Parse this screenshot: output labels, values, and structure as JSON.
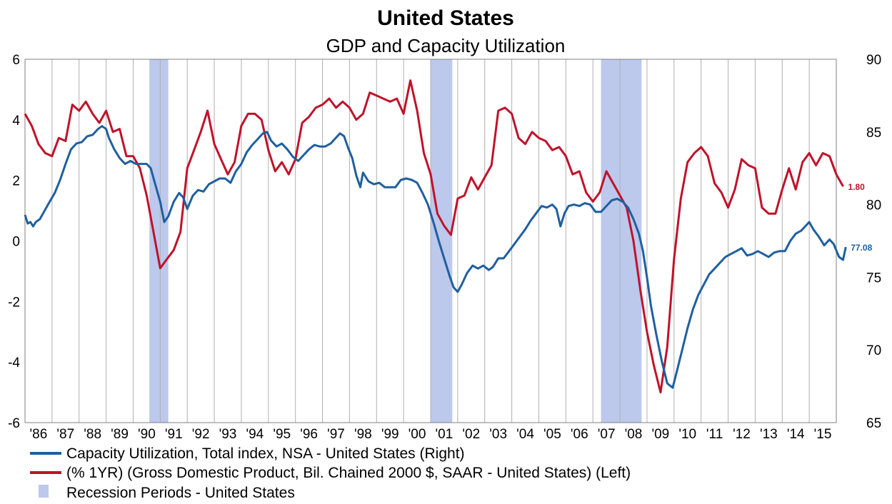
{
  "chart_data": {
    "type": "line",
    "title": "United States",
    "subtitle": "GDP and Capacity Utilization",
    "x_tick_labels": [
      "'86",
      "'87",
      "'88",
      "'89",
      "'90",
      "'91",
      "'92",
      "'93",
      "'94",
      "'95",
      "'96",
      "'97",
      "'98",
      "'99",
      "'00",
      "'01",
      "'02",
      "'03",
      "'04",
      "'05",
      "'06",
      "'07",
      "'08",
      "'09",
      "'10",
      "'11",
      "'12",
      "'13",
      "'14",
      "'15"
    ],
    "x_range": [
      1986,
      2016
    ],
    "y_left": {
      "range": [
        -6,
        6
      ],
      "ticks": [
        "-6",
        "-4",
        "-2",
        "0",
        "2",
        "4",
        "6"
      ]
    },
    "y_right": {
      "range": [
        65,
        90
      ],
      "ticks": [
        "65",
        "70",
        "75",
        "80",
        "85",
        "90"
      ]
    },
    "grid": {
      "vertical": true,
      "horizontal": false
    },
    "legend_position": "bottom-left",
    "recessions": [
      {
        "start": 1990.6,
        "end": 1991.3
      },
      {
        "start": 2001.0,
        "end": 2001.8
      },
      {
        "start": 2007.3,
        "end": 2008.8
      }
    ],
    "series": [
      {
        "name": "Capacity Utilization, Total index, NSA - United States  (Right)",
        "axis": "right",
        "color": "#1f5fa0",
        "end_label": "77.08",
        "points": [
          [
            1986.0,
            79.3
          ],
          [
            1986.1,
            78.7
          ],
          [
            1986.2,
            78.8
          ],
          [
            1986.3,
            78.5
          ],
          [
            1986.4,
            78.8
          ],
          [
            1986.55,
            79.0
          ],
          [
            1986.7,
            79.5
          ],
          [
            1986.85,
            80.0
          ],
          [
            1987.1,
            80.8
          ],
          [
            1987.3,
            81.7
          ],
          [
            1987.5,
            82.8
          ],
          [
            1987.7,
            83.8
          ],
          [
            1987.9,
            84.2
          ],
          [
            1988.1,
            84.3
          ],
          [
            1988.3,
            84.7
          ],
          [
            1988.5,
            84.8
          ],
          [
            1988.7,
            85.2
          ],
          [
            1988.85,
            85.4
          ],
          [
            1989.0,
            85.2
          ],
          [
            1989.1,
            84.6
          ],
          [
            1989.3,
            83.8
          ],
          [
            1989.5,
            83.2
          ],
          [
            1989.7,
            82.8
          ],
          [
            1989.9,
            83.0
          ],
          [
            1990.1,
            82.8
          ],
          [
            1990.3,
            82.8
          ],
          [
            1990.5,
            82.8
          ],
          [
            1990.65,
            82.5
          ],
          [
            1990.8,
            81.5
          ],
          [
            1991.0,
            80.2
          ],
          [
            1991.15,
            78.8
          ],
          [
            1991.3,
            79.2
          ],
          [
            1991.5,
            80.2
          ],
          [
            1991.7,
            80.8
          ],
          [
            1991.85,
            80.5
          ],
          [
            1992.0,
            79.7
          ],
          [
            1992.2,
            80.6
          ],
          [
            1992.4,
            81.0
          ],
          [
            1992.6,
            80.9
          ],
          [
            1992.8,
            81.4
          ],
          [
            1993.0,
            81.6
          ],
          [
            1993.2,
            81.8
          ],
          [
            1993.4,
            81.8
          ],
          [
            1993.6,
            81.5
          ],
          [
            1993.8,
            82.3
          ],
          [
            1994.0,
            82.8
          ],
          [
            1994.2,
            83.6
          ],
          [
            1994.4,
            84.1
          ],
          [
            1994.6,
            84.5
          ],
          [
            1994.8,
            84.9
          ],
          [
            1994.95,
            85.0
          ],
          [
            1995.1,
            84.4
          ],
          [
            1995.3,
            84.0
          ],
          [
            1995.5,
            84.2
          ],
          [
            1995.7,
            83.8
          ],
          [
            1995.9,
            83.3
          ],
          [
            1996.1,
            83.0
          ],
          [
            1996.3,
            83.4
          ],
          [
            1996.5,
            83.8
          ],
          [
            1996.7,
            84.1
          ],
          [
            1996.9,
            84.0
          ],
          [
            1997.1,
            84.0
          ],
          [
            1997.3,
            84.2
          ],
          [
            1997.5,
            84.6
          ],
          [
            1997.65,
            84.9
          ],
          [
            1997.8,
            84.7
          ],
          [
            1997.95,
            83.9
          ],
          [
            1998.1,
            83.2
          ],
          [
            1998.25,
            82.0
          ],
          [
            1998.4,
            81.2
          ],
          [
            1998.5,
            82.2
          ],
          [
            1998.7,
            81.6
          ],
          [
            1998.9,
            81.4
          ],
          [
            1999.1,
            81.5
          ],
          [
            1999.3,
            81.2
          ],
          [
            1999.5,
            81.2
          ],
          [
            1999.7,
            81.2
          ],
          [
            1999.9,
            81.7
          ],
          [
            2000.1,
            81.8
          ],
          [
            2000.3,
            81.7
          ],
          [
            2000.5,
            81.5
          ],
          [
            2000.7,
            80.8
          ],
          [
            2000.9,
            80.0
          ],
          [
            2001.1,
            78.8
          ],
          [
            2001.3,
            77.5
          ],
          [
            2001.5,
            76.3
          ],
          [
            2001.7,
            75.1
          ],
          [
            2001.85,
            74.3
          ],
          [
            2002.0,
            74.0
          ],
          [
            2002.15,
            74.5
          ],
          [
            2002.35,
            75.3
          ],
          [
            2002.55,
            75.8
          ],
          [
            2002.75,
            75.6
          ],
          [
            2002.95,
            75.8
          ],
          [
            2003.15,
            75.5
          ],
          [
            2003.3,
            75.7
          ],
          [
            2003.5,
            76.3
          ],
          [
            2003.7,
            76.3
          ],
          [
            2003.9,
            76.8
          ],
          [
            2004.1,
            77.3
          ],
          [
            2004.3,
            77.8
          ],
          [
            2004.5,
            78.3
          ],
          [
            2004.7,
            78.9
          ],
          [
            2004.9,
            79.4
          ],
          [
            2005.1,
            79.9
          ],
          [
            2005.3,
            79.8
          ],
          [
            2005.5,
            80.0
          ],
          [
            2005.65,
            79.7
          ],
          [
            2005.8,
            78.5
          ],
          [
            2005.95,
            79.4
          ],
          [
            2006.1,
            79.9
          ],
          [
            2006.3,
            80.0
          ],
          [
            2006.5,
            79.9
          ],
          [
            2006.7,
            80.1
          ],
          [
            2006.9,
            80.0
          ],
          [
            2007.1,
            79.5
          ],
          [
            2007.3,
            79.5
          ],
          [
            2007.5,
            79.9
          ],
          [
            2007.7,
            80.3
          ],
          [
            2007.9,
            80.4
          ],
          [
            2008.1,
            80.2
          ],
          [
            2008.3,
            79.8
          ],
          [
            2008.5,
            79.0
          ],
          [
            2008.7,
            78.0
          ],
          [
            2008.85,
            76.8
          ],
          [
            2009.0,
            75.0
          ],
          [
            2009.15,
            73.0
          ],
          [
            2009.35,
            71.0
          ],
          [
            2009.55,
            69.2
          ],
          [
            2009.75,
            67.7
          ],
          [
            2009.95,
            67.4
          ],
          [
            2010.1,
            68.5
          ],
          [
            2010.3,
            70.0
          ],
          [
            2010.5,
            71.5
          ],
          [
            2010.7,
            72.8
          ],
          [
            2010.9,
            73.8
          ],
          [
            2011.1,
            74.5
          ],
          [
            2011.3,
            75.2
          ],
          [
            2011.5,
            75.6
          ],
          [
            2011.7,
            76.0
          ],
          [
            2011.9,
            76.4
          ],
          [
            2012.1,
            76.6
          ],
          [
            2012.3,
            76.8
          ],
          [
            2012.5,
            77.0
          ],
          [
            2012.7,
            76.5
          ],
          [
            2012.9,
            76.6
          ],
          [
            2013.1,
            76.8
          ],
          [
            2013.3,
            76.6
          ],
          [
            2013.5,
            76.4
          ],
          [
            2013.7,
            76.7
          ],
          [
            2013.9,
            76.8
          ],
          [
            2014.1,
            76.8
          ],
          [
            2014.3,
            77.5
          ],
          [
            2014.5,
            78.0
          ],
          [
            2014.7,
            78.2
          ],
          [
            2014.85,
            78.5
          ],
          [
            2015.0,
            78.8
          ],
          [
            2015.15,
            78.3
          ],
          [
            2015.35,
            77.8
          ],
          [
            2015.55,
            77.2
          ],
          [
            2015.75,
            77.6
          ],
          [
            2015.9,
            77.3
          ],
          [
            2016.1,
            76.4
          ],
          [
            2016.25,
            76.2
          ],
          [
            2016.35,
            77.08
          ]
        ]
      },
      {
        "name": "(% 1YR) (Gross Domestic Product, Bil. Chained 2000 $, SAAR - United States)  (Left)",
        "axis": "left",
        "color": "#c0122a",
        "end_label": "1.80",
        "points": [
          [
            1986.0,
            4.2
          ],
          [
            1986.25,
            3.8
          ],
          [
            1986.5,
            3.2
          ],
          [
            1986.75,
            2.9
          ],
          [
            1987.0,
            2.8
          ],
          [
            1987.25,
            3.4
          ],
          [
            1987.5,
            3.3
          ],
          [
            1987.75,
            4.5
          ],
          [
            1988.0,
            4.3
          ],
          [
            1988.25,
            4.6
          ],
          [
            1988.5,
            4.2
          ],
          [
            1988.75,
            3.9
          ],
          [
            1989.0,
            4.3
          ],
          [
            1989.25,
            3.6
          ],
          [
            1989.5,
            3.7
          ],
          [
            1989.75,
            2.8
          ],
          [
            1990.0,
            2.8
          ],
          [
            1990.25,
            2.4
          ],
          [
            1990.5,
            1.5
          ],
          [
            1990.75,
            0.3
          ],
          [
            1991.0,
            -0.9
          ],
          [
            1991.25,
            -0.6
          ],
          [
            1991.5,
            -0.3
          ],
          [
            1991.75,
            0.3
          ],
          [
            1992.0,
            2.4
          ],
          [
            1992.25,
            3.0
          ],
          [
            1992.5,
            3.6
          ],
          [
            1992.75,
            4.3
          ],
          [
            1993.0,
            3.2
          ],
          [
            1993.25,
            2.7
          ],
          [
            1993.5,
            2.2
          ],
          [
            1993.75,
            2.6
          ],
          [
            1994.0,
            3.8
          ],
          [
            1994.25,
            4.2
          ],
          [
            1994.5,
            4.2
          ],
          [
            1994.75,
            4.0
          ],
          [
            1995.0,
            3.0
          ],
          [
            1995.25,
            2.3
          ],
          [
            1995.5,
            2.6
          ],
          [
            1995.75,
            2.2
          ],
          [
            1996.0,
            2.7
          ],
          [
            1996.25,
            3.9
          ],
          [
            1996.5,
            4.1
          ],
          [
            1996.75,
            4.4
          ],
          [
            1997.0,
            4.5
          ],
          [
            1997.25,
            4.7
          ],
          [
            1997.5,
            4.4
          ],
          [
            1997.75,
            4.6
          ],
          [
            1998.0,
            4.4
          ],
          [
            1998.25,
            4.0
          ],
          [
            1998.5,
            4.2
          ],
          [
            1998.75,
            4.9
          ],
          [
            1999.0,
            4.8
          ],
          [
            1999.25,
            4.7
          ],
          [
            1999.5,
            4.6
          ],
          [
            1999.75,
            4.7
          ],
          [
            2000.0,
            4.2
          ],
          [
            2000.25,
            5.3
          ],
          [
            2000.5,
            4.3
          ],
          [
            2000.75,
            2.9
          ],
          [
            2001.0,
            2.2
          ],
          [
            2001.25,
            0.9
          ],
          [
            2001.5,
            0.5
          ],
          [
            2001.75,
            0.2
          ],
          [
            2002.0,
            1.4
          ],
          [
            2002.25,
            1.5
          ],
          [
            2002.5,
            2.1
          ],
          [
            2002.75,
            1.7
          ],
          [
            2003.0,
            2.1
          ],
          [
            2003.25,
            2.5
          ],
          [
            2003.5,
            4.3
          ],
          [
            2003.75,
            4.4
          ],
          [
            2004.0,
            4.2
          ],
          [
            2004.25,
            3.4
          ],
          [
            2004.5,
            3.2
          ],
          [
            2004.75,
            3.6
          ],
          [
            2005.0,
            3.4
          ],
          [
            2005.25,
            3.3
          ],
          [
            2005.5,
            3.0
          ],
          [
            2005.75,
            3.1
          ],
          [
            2006.0,
            2.8
          ],
          [
            2006.25,
            2.2
          ],
          [
            2006.5,
            2.3
          ],
          [
            2006.75,
            1.6
          ],
          [
            2007.0,
            1.3
          ],
          [
            2007.25,
            1.6
          ],
          [
            2007.5,
            2.3
          ],
          [
            2007.75,
            1.9
          ],
          [
            2008.0,
            1.5
          ],
          [
            2008.25,
            1.1
          ],
          [
            2008.5,
            0.0
          ],
          [
            2008.75,
            -1.6
          ],
          [
            2009.0,
            -3.0
          ],
          [
            2009.25,
            -4.1
          ],
          [
            2009.5,
            -5.0
          ],
          [
            2009.75,
            -3.5
          ],
          [
            2010.0,
            -0.6
          ],
          [
            2010.25,
            1.4
          ],
          [
            2010.5,
            2.6
          ],
          [
            2010.75,
            2.9
          ],
          [
            2011.0,
            3.1
          ],
          [
            2011.25,
            2.8
          ],
          [
            2011.5,
            1.9
          ],
          [
            2011.75,
            1.6
          ],
          [
            2012.0,
            1.1
          ],
          [
            2012.25,
            1.7
          ],
          [
            2012.5,
            2.7
          ],
          [
            2012.75,
            2.5
          ],
          [
            2013.0,
            2.4
          ],
          [
            2013.25,
            1.1
          ],
          [
            2013.5,
            0.9
          ],
          [
            2013.75,
            0.9
          ],
          [
            2014.0,
            1.7
          ],
          [
            2014.25,
            2.4
          ],
          [
            2014.5,
            1.7
          ],
          [
            2014.75,
            2.6
          ],
          [
            2015.0,
            2.9
          ],
          [
            2015.25,
            2.5
          ],
          [
            2015.5,
            2.9
          ],
          [
            2015.75,
            2.8
          ],
          [
            2016.0,
            2.2
          ],
          [
            2016.25,
            1.8
          ]
        ]
      },
      {
        "name": "Recession Periods - United States",
        "kind": "shading",
        "color": "#bcc8ec"
      }
    ]
  }
}
